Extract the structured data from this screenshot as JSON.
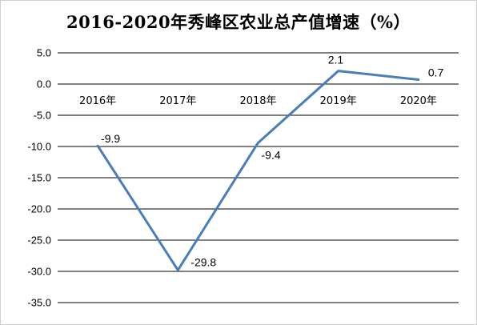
{
  "chart_data": {
    "type": "line",
    "title": "2016-2020年秀峰区农业总产值增速（%）",
    "categories": [
      "2016年",
      "2017年",
      "2018年",
      "2019年",
      "2020年"
    ],
    "series": [
      {
        "values": [
          -9.9,
          -29.8,
          -9.4,
          2.1,
          0.7
        ]
      }
    ],
    "data_labels": [
      "-9.9",
      "-29.8",
      "-9.4",
      "2.1",
      "0.7"
    ],
    "yticks": [
      "5.0",
      "0.0",
      "-5.0",
      "-10.0",
      "-15.0",
      "-20.0",
      "-25.0",
      "-30.0",
      "-35.0"
    ],
    "ylim": [
      -35,
      5
    ],
    "grid": true,
    "line_color": "#4a7ebb"
  }
}
